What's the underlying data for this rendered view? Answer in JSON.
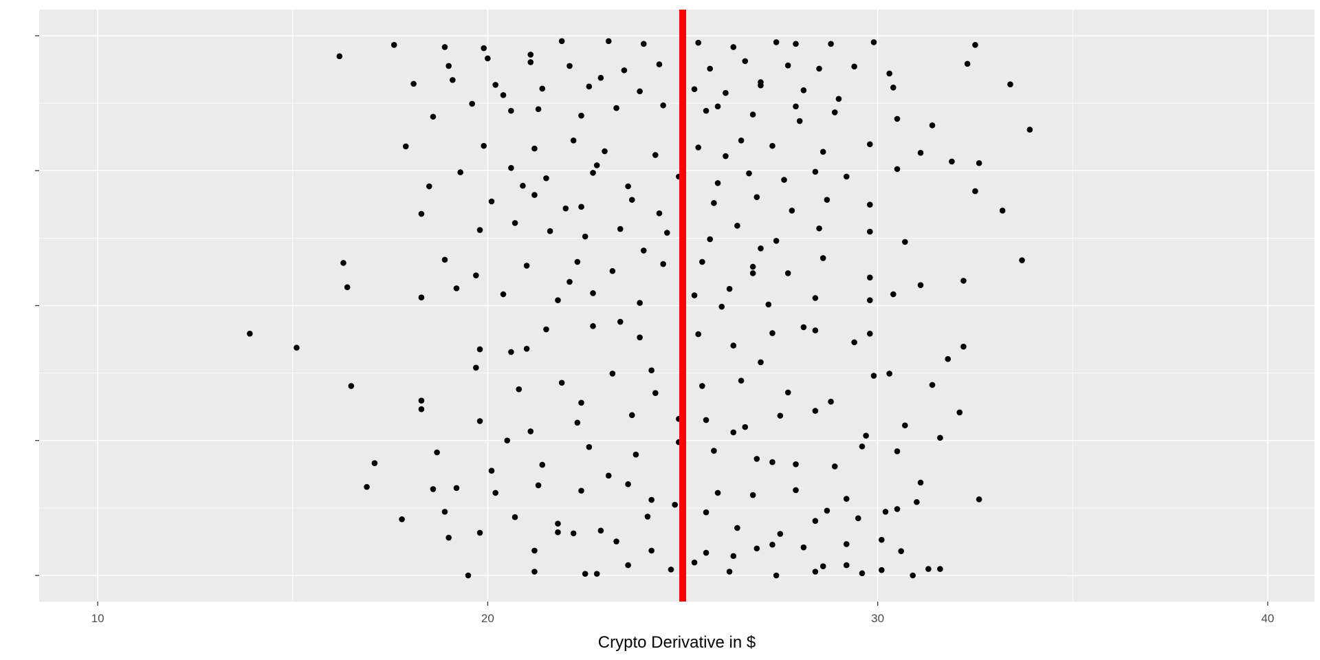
{
  "chart_data": {
    "type": "scatter",
    "title": "",
    "xlabel": "Crypto Derivative in $",
    "ylabel": "",
    "x_ticks": [
      "10",
      "20",
      "30",
      "40"
    ],
    "x_tick_values": [
      10,
      20,
      30,
      40
    ],
    "xlim": [
      8.5,
      41.2
    ],
    "ylim": [
      0,
      1
    ],
    "grid": true,
    "legend": "none",
    "background_color": "#ebebeb",
    "grid_color": "#ffffff",
    "point_color": "#000000",
    "reference_line": {
      "x": 25,
      "color": "#ff0000",
      "orientation": "vertical"
    },
    "series": [
      {
        "points": [
          [
            16.2,
            0.962
          ],
          [
            17.6,
            0.983
          ],
          [
            18.9,
            0.979
          ],
          [
            19.9,
            0.977
          ],
          [
            21.1,
            0.965
          ],
          [
            21.9,
            0.99
          ],
          [
            23.1,
            0.99
          ],
          [
            24.0,
            0.985
          ],
          [
            25.4,
            0.987
          ],
          [
            26.3,
            0.979
          ],
          [
            27.4,
            0.988
          ],
          [
            27.9,
            0.985
          ],
          [
            28.8,
            0.985
          ],
          [
            29.9,
            0.988
          ],
          [
            32.5,
            0.983
          ],
          [
            19.0,
            0.944
          ],
          [
            20.0,
            0.958
          ],
          [
            21.1,
            0.951
          ],
          [
            22.1,
            0.944
          ],
          [
            23.5,
            0.936
          ],
          [
            24.4,
            0.947
          ],
          [
            25.7,
            0.939
          ],
          [
            26.6,
            0.953
          ],
          [
            27.7,
            0.945
          ],
          [
            28.5,
            0.939
          ],
          [
            29.4,
            0.943
          ],
          [
            30.3,
            0.93
          ],
          [
            32.3,
            0.948
          ],
          [
            18.1,
            0.911
          ],
          [
            19.1,
            0.918
          ],
          [
            20.2,
            0.909
          ],
          [
            21.4,
            0.902
          ],
          [
            22.6,
            0.906
          ],
          [
            23.9,
            0.897
          ],
          [
            25.3,
            0.901
          ],
          [
            26.1,
            0.894
          ],
          [
            27.0,
            0.908
          ],
          [
            28.1,
            0.899
          ],
          [
            29.0,
            0.883
          ],
          [
            30.4,
            0.904
          ],
          [
            33.4,
            0.91
          ],
          [
            18.6,
            0.85
          ],
          [
            19.6,
            0.874
          ],
          [
            20.6,
            0.861
          ],
          [
            21.3,
            0.864
          ],
          [
            22.4,
            0.852
          ],
          [
            23.3,
            0.866
          ],
          [
            24.5,
            0.871
          ],
          [
            25.6,
            0.861
          ],
          [
            26.8,
            0.854
          ],
          [
            27.9,
            0.869
          ],
          [
            28.9,
            0.858
          ],
          [
            30.5,
            0.846
          ],
          [
            31.4,
            0.834
          ],
          [
            33.9,
            0.826
          ],
          [
            17.9,
            0.795
          ],
          [
            19.9,
            0.796
          ],
          [
            21.2,
            0.791
          ],
          [
            22.2,
            0.806
          ],
          [
            23.0,
            0.786
          ],
          [
            24.3,
            0.779
          ],
          [
            25.4,
            0.793
          ],
          [
            26.5,
            0.806
          ],
          [
            27.3,
            0.796
          ],
          [
            28.6,
            0.785
          ],
          [
            29.8,
            0.799
          ],
          [
            31.1,
            0.783
          ],
          [
            31.9,
            0.767
          ],
          [
            32.6,
            0.764
          ],
          [
            19.3,
            0.747
          ],
          [
            20.6,
            0.755
          ],
          [
            21.5,
            0.736
          ],
          [
            22.7,
            0.746
          ],
          [
            23.6,
            0.721
          ],
          [
            24.9,
            0.739
          ],
          [
            25.9,
            0.727
          ],
          [
            26.7,
            0.745
          ],
          [
            27.6,
            0.733
          ],
          [
            28.4,
            0.748
          ],
          [
            29.2,
            0.739
          ],
          [
            30.5,
            0.753
          ],
          [
            18.5,
            0.721
          ],
          [
            20.1,
            0.693
          ],
          [
            21.2,
            0.705
          ],
          [
            22.4,
            0.683
          ],
          [
            23.7,
            0.696
          ],
          [
            24.4,
            0.671
          ],
          [
            25.8,
            0.69
          ],
          [
            26.9,
            0.701
          ],
          [
            27.8,
            0.676
          ],
          [
            28.7,
            0.696
          ],
          [
            29.8,
            0.687
          ],
          [
            32.5,
            0.712
          ],
          [
            33.2,
            0.676
          ],
          [
            18.3,
            0.67
          ],
          [
            19.8,
            0.64
          ],
          [
            20.7,
            0.653
          ],
          [
            21.6,
            0.638
          ],
          [
            22.5,
            0.628
          ],
          [
            23.4,
            0.642
          ],
          [
            24.6,
            0.635
          ],
          [
            25.7,
            0.623
          ],
          [
            26.4,
            0.648
          ],
          [
            27.4,
            0.62
          ],
          [
            28.5,
            0.643
          ],
          [
            29.8,
            0.637
          ],
          [
            30.7,
            0.618
          ],
          [
            16.3,
            0.579
          ],
          [
            18.9,
            0.585
          ],
          [
            19.7,
            0.556
          ],
          [
            21.0,
            0.574
          ],
          [
            22.3,
            0.581
          ],
          [
            23.2,
            0.564
          ],
          [
            24.5,
            0.577
          ],
          [
            25.5,
            0.581
          ],
          [
            26.8,
            0.572
          ],
          [
            27.7,
            0.56
          ],
          [
            28.6,
            0.588
          ],
          [
            29.8,
            0.552
          ],
          [
            31.1,
            0.538
          ],
          [
            32.2,
            0.546
          ],
          [
            33.7,
            0.584
          ],
          [
            16.4,
            0.534
          ],
          [
            18.3,
            0.515
          ],
          [
            19.2,
            0.532
          ],
          [
            20.4,
            0.521
          ],
          [
            21.8,
            0.51
          ],
          [
            22.7,
            0.523
          ],
          [
            23.9,
            0.505
          ],
          [
            25.3,
            0.519
          ],
          [
            26.2,
            0.531
          ],
          [
            27.2,
            0.502
          ],
          [
            28.4,
            0.514
          ],
          [
            29.8,
            0.51
          ],
          [
            30.4,
            0.521
          ],
          [
            13.9,
            0.448
          ],
          [
            15.1,
            0.422
          ],
          [
            19.8,
            0.419
          ],
          [
            20.6,
            0.414
          ],
          [
            21.5,
            0.456
          ],
          [
            22.7,
            0.462
          ],
          [
            23.9,
            0.441
          ],
          [
            25.4,
            0.447
          ],
          [
            26.3,
            0.426
          ],
          [
            27.3,
            0.449
          ],
          [
            28.4,
            0.454
          ],
          [
            29.4,
            0.432
          ],
          [
            29.8,
            0.448
          ],
          [
            32.2,
            0.424
          ],
          [
            16.5,
            0.351
          ],
          [
            18.3,
            0.324
          ],
          [
            19.7,
            0.385
          ],
          [
            20.8,
            0.345
          ],
          [
            21.9,
            0.357
          ],
          [
            23.2,
            0.374
          ],
          [
            24.3,
            0.338
          ],
          [
            25.5,
            0.351
          ],
          [
            26.5,
            0.361
          ],
          [
            27.7,
            0.339
          ],
          [
            28.8,
            0.322
          ],
          [
            29.9,
            0.37
          ],
          [
            30.3,
            0.374
          ],
          [
            31.4,
            0.353
          ],
          [
            31.8,
            0.401
          ],
          [
            18.3,
            0.308
          ],
          [
            19.8,
            0.286
          ],
          [
            21.1,
            0.267
          ],
          [
            22.3,
            0.283
          ],
          [
            23.7,
            0.297
          ],
          [
            24.9,
            0.29
          ],
          [
            25.6,
            0.288
          ],
          [
            26.6,
            0.275
          ],
          [
            27.5,
            0.296
          ],
          [
            28.4,
            0.305
          ],
          [
            29.7,
            0.259
          ],
          [
            30.7,
            0.278
          ],
          [
            32.1,
            0.302
          ],
          [
            17.1,
            0.208
          ],
          [
            18.7,
            0.228
          ],
          [
            20.1,
            0.194
          ],
          [
            21.4,
            0.205
          ],
          [
            22.6,
            0.238
          ],
          [
            23.8,
            0.224
          ],
          [
            24.9,
            0.247
          ],
          [
            25.8,
            0.231
          ],
          [
            26.9,
            0.216
          ],
          [
            27.9,
            0.206
          ],
          [
            28.9,
            0.202
          ],
          [
            29.6,
            0.239
          ],
          [
            30.5,
            0.23
          ],
          [
            31.6,
            0.255
          ],
          [
            16.9,
            0.164
          ],
          [
            18.6,
            0.16
          ],
          [
            19.2,
            0.162
          ],
          [
            20.2,
            0.153
          ],
          [
            21.3,
            0.167
          ],
          [
            22.4,
            0.157
          ],
          [
            23.6,
            0.169
          ],
          [
            24.8,
            0.131
          ],
          [
            25.9,
            0.153
          ],
          [
            26.8,
            0.149
          ],
          [
            27.9,
            0.158
          ],
          [
            29.2,
            0.142
          ],
          [
            30.2,
            0.118
          ],
          [
            31.1,
            0.172
          ],
          [
            32.6,
            0.141
          ],
          [
            17.8,
            0.104
          ],
          [
            18.9,
            0.118
          ],
          [
            20.7,
            0.108
          ],
          [
            21.8,
            0.096
          ],
          [
            22.9,
            0.083
          ],
          [
            24.1,
            0.109
          ],
          [
            25.6,
            0.117
          ],
          [
            26.4,
            0.088
          ],
          [
            27.5,
            0.077
          ],
          [
            28.4,
            0.101
          ],
          [
            29.5,
            0.106
          ],
          [
            30.5,
            0.123
          ],
          [
            31.0,
            0.136
          ],
          [
            19.0,
            0.07
          ],
          [
            19.8,
            0.079
          ],
          [
            21.2,
            0.046
          ],
          [
            22.2,
            0.078
          ],
          [
            23.3,
            0.063
          ],
          [
            24.2,
            0.046
          ],
          [
            25.6,
            0.042
          ],
          [
            26.3,
            0.036
          ],
          [
            27.3,
            0.057
          ],
          [
            28.1,
            0.052
          ],
          [
            29.2,
            0.058
          ],
          [
            30.1,
            0.066
          ],
          [
            30.6,
            0.045
          ],
          [
            19.5,
            0.0
          ],
          [
            21.2,
            0.007
          ],
          [
            22.5,
            0.003
          ],
          [
            22.8,
            0.003
          ],
          [
            23.6,
            0.019
          ],
          [
            24.7,
            0.011
          ],
          [
            25.3,
            0.024
          ],
          [
            26.2,
            0.007
          ],
          [
            27.4,
            0.0
          ],
          [
            28.4,
            0.007
          ],
          [
            28.6,
            0.017
          ],
          [
            29.2,
            0.019
          ],
          [
            29.6,
            0.004
          ],
          [
            30.1,
            0.01
          ],
          [
            30.9,
            0.0
          ],
          [
            31.3,
            0.012
          ],
          [
            31.6,
            0.012
          ],
          [
            20.4,
            0.89
          ],
          [
            22.9,
            0.922
          ],
          [
            25.9,
            0.869
          ],
          [
            27.0,
            0.914
          ],
          [
            28.0,
            0.842
          ],
          [
            26.1,
            0.777
          ],
          [
            22.8,
            0.76
          ],
          [
            20.9,
            0.722
          ],
          [
            24.0,
            0.602
          ],
          [
            27.0,
            0.606
          ],
          [
            22.1,
            0.544
          ],
          [
            26.0,
            0.498
          ],
          [
            23.4,
            0.47
          ],
          [
            21.0,
            0.42
          ],
          [
            24.2,
            0.38
          ],
          [
            27.0,
            0.395
          ],
          [
            22.4,
            0.32
          ],
          [
            26.3,
            0.265
          ],
          [
            23.1,
            0.185
          ],
          [
            27.3,
            0.21
          ],
          [
            24.2,
            0.14
          ],
          [
            21.8,
            0.08
          ],
          [
            26.9,
            0.05
          ],
          [
            28.7,
            0.12
          ],
          [
            20.5,
            0.25
          ],
          [
            22.0,
            0.68
          ],
          [
            26.8,
            0.56
          ],
          [
            28.1,
            0.46
          ]
        ]
      }
    ]
  }
}
